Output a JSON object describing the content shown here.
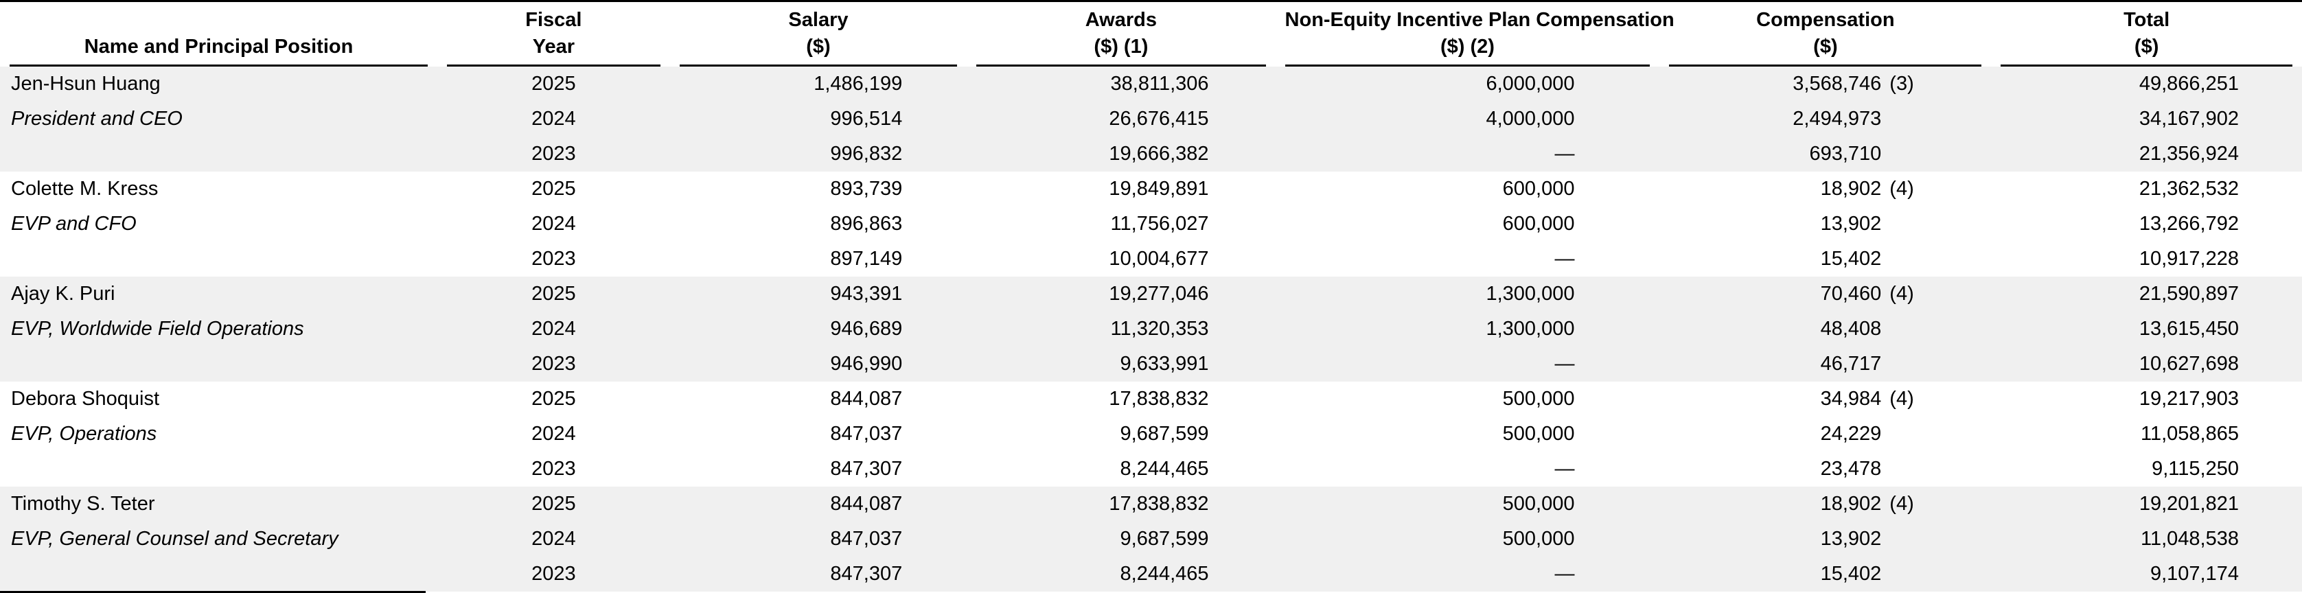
{
  "colors": {
    "shaded_row_background": "#f0f0f0",
    "rule_color": "#000000",
    "text_color": "#000000"
  },
  "table": {
    "dash": "—",
    "columns": [
      {
        "line1": "",
        "line2": "Name and Principal Position"
      },
      {
        "line1": "Fiscal",
        "line2": "Year"
      },
      {
        "line1": "Salary",
        "line2": "($)"
      },
      {
        "line1": "Awards",
        "line2": "($) (1)"
      },
      {
        "line1": "Non-Equity Incentive Plan Compensation",
        "line2": "($) (2)"
      },
      {
        "line1": "Compensation",
        "line2": "($)"
      },
      {
        "line1": "Total",
        "line2": "($)"
      }
    ],
    "groups": [
      {
        "name": "Jen-Hsun Huang",
        "title": "President and CEO",
        "shaded": true,
        "rows": [
          {
            "year": "2025",
            "salary": "1,486,199",
            "awards": "38,811,306",
            "non_equity": "6,000,000",
            "other_comp": "3,568,746",
            "other_comp_fn": "(3)",
            "total": "49,866,251"
          },
          {
            "year": "2024",
            "salary": "996,514",
            "awards": "26,676,415",
            "non_equity": "4,000,000",
            "other_comp": "2,494,973",
            "other_comp_fn": "",
            "total": "34,167,902"
          },
          {
            "year": "2023",
            "salary": "996,832",
            "awards": "19,666,382",
            "non_equity": "—",
            "other_comp": "693,710",
            "other_comp_fn": "",
            "total": "21,356,924"
          }
        ]
      },
      {
        "name": "Colette M. Kress",
        "title": "EVP and CFO",
        "shaded": false,
        "rows": [
          {
            "year": "2025",
            "salary": "893,739",
            "awards": "19,849,891",
            "non_equity": "600,000",
            "other_comp": "18,902",
            "other_comp_fn": "(4)",
            "total": "21,362,532"
          },
          {
            "year": "2024",
            "salary": "896,863",
            "awards": "11,756,027",
            "non_equity": "600,000",
            "other_comp": "13,902",
            "other_comp_fn": "",
            "total": "13,266,792"
          },
          {
            "year": "2023",
            "salary": "897,149",
            "awards": "10,004,677",
            "non_equity": "—",
            "other_comp": "15,402",
            "other_comp_fn": "",
            "total": "10,917,228"
          }
        ]
      },
      {
        "name": "Ajay K. Puri",
        "title": "EVP, Worldwide Field Operations",
        "shaded": true,
        "rows": [
          {
            "year": "2025",
            "salary": "943,391",
            "awards": "19,277,046",
            "non_equity": "1,300,000",
            "other_comp": "70,460",
            "other_comp_fn": "(4)",
            "total": "21,590,897"
          },
          {
            "year": "2024",
            "salary": "946,689",
            "awards": "11,320,353",
            "non_equity": "1,300,000",
            "other_comp": "48,408",
            "other_comp_fn": "",
            "total": "13,615,450"
          },
          {
            "year": "2023",
            "salary": "946,990",
            "awards": "9,633,991",
            "non_equity": "—",
            "other_comp": "46,717",
            "other_comp_fn": "",
            "total": "10,627,698"
          }
        ]
      },
      {
        "name": "Debora Shoquist",
        "title": "EVP, Operations",
        "shaded": false,
        "rows": [
          {
            "year": "2025",
            "salary": "844,087",
            "awards": "17,838,832",
            "non_equity": "500,000",
            "other_comp": "34,984",
            "other_comp_fn": "(4)",
            "total": "19,217,903"
          },
          {
            "year": "2024",
            "salary": "847,037",
            "awards": "9,687,599",
            "non_equity": "500,000",
            "other_comp": "24,229",
            "other_comp_fn": "",
            "total": "11,058,865"
          },
          {
            "year": "2023",
            "salary": "847,307",
            "awards": "8,244,465",
            "non_equity": "—",
            "other_comp": "23,478",
            "other_comp_fn": "",
            "total": "9,115,250"
          }
        ]
      },
      {
        "name": "Timothy S. Teter",
        "title": "EVP, General Counsel and Secretary",
        "shaded": true,
        "rows": [
          {
            "year": "2025",
            "salary": "844,087",
            "awards": "17,838,832",
            "non_equity": "500,000",
            "other_comp": "18,902",
            "other_comp_fn": "(4)",
            "total": "19,201,821"
          },
          {
            "year": "2024",
            "salary": "847,037",
            "awards": "9,687,599",
            "non_equity": "500,000",
            "other_comp": "13,902",
            "other_comp_fn": "",
            "total": "11,048,538"
          },
          {
            "year": "2023",
            "salary": "847,307",
            "awards": "8,244,465",
            "non_equity": "—",
            "other_comp": "15,402",
            "other_comp_fn": "",
            "total": "9,107,174"
          }
        ]
      }
    ]
  }
}
